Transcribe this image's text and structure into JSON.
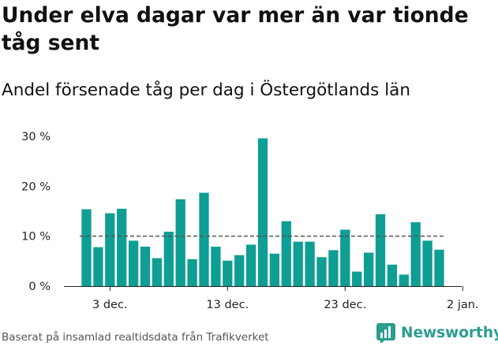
{
  "title": "Under elva dagar var mer än var tionde tåg sent",
  "subtitle": "Andel försenade tåg per dag i Östergötlands län",
  "footer": "Baserat på insamlad realtidsdata från Trafikverket",
  "brand": "Newsworthy",
  "colors": {
    "bar": "#0e9e94",
    "reference_line": "#555555",
    "brand": "#2a9d8f"
  },
  "chart_data": {
    "type": "bar",
    "x_start": "2023-12-01",
    "values": [
      15.4,
      7.8,
      14.6,
      15.5,
      9.1,
      7.9,
      5.6,
      10.9,
      17.4,
      5.4,
      18.7,
      7.9,
      5.1,
      6.2,
      8.3,
      29.6,
      6.5,
      13.0,
      8.9,
      8.9,
      5.8,
      7.2,
      11.3,
      2.9,
      6.7,
      14.4,
      4.3,
      2.3,
      12.8,
      9.1,
      7.3
    ],
    "reference_line": 10,
    "ylim": [
      0,
      30
    ],
    "y_ticks": [
      {
        "value": 0,
        "label": "0 %"
      },
      {
        "value": 10,
        "label": "10 %"
      },
      {
        "value": 20,
        "label": "20 %"
      },
      {
        "value": 30,
        "label": "30 %"
      }
    ],
    "x_ticks": [
      {
        "index": 2,
        "label": "3 dec."
      },
      {
        "index": 12,
        "label": "13 dec."
      },
      {
        "index": 22,
        "label": "23 dec."
      },
      {
        "index": 32,
        "label": "2 jan."
      }
    ],
    "grid": false
  }
}
